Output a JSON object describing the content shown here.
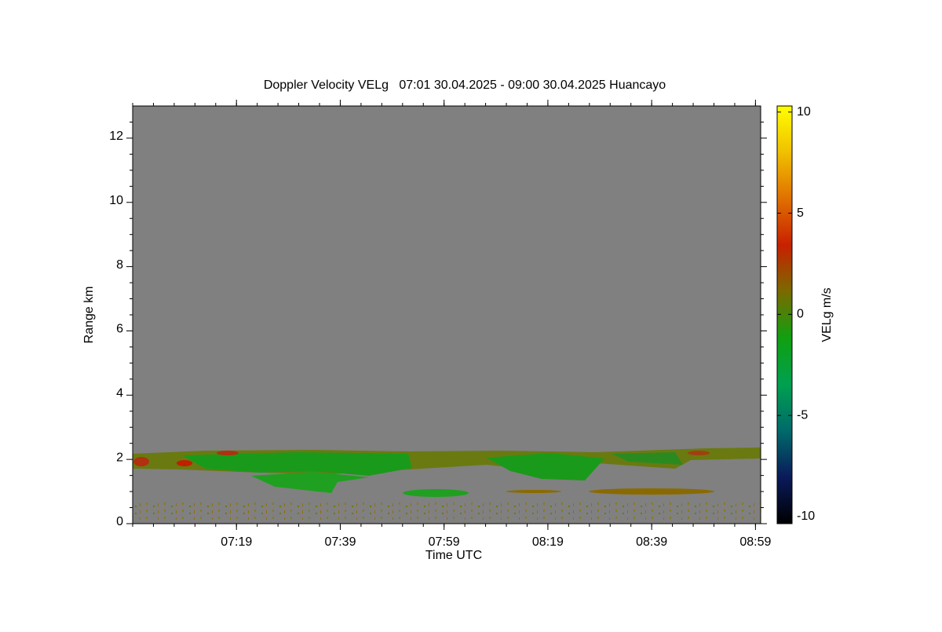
{
  "chart_data": {
    "type": "heatmap",
    "title": "Doppler Velocity VELg   07:01 30.04.2025 - 09:00 30.04.2025 Huancayo",
    "x_label": "Time UTC",
    "y_label": "Range km",
    "colorbar_label": "VELg m/s",
    "xlim": [
      419,
      540
    ],
    "xticks": [
      {
        "value": 439,
        "label": "07:19"
      },
      {
        "value": 459,
        "label": "07:39"
      },
      {
        "value": 479,
        "label": "07:59"
      },
      {
        "value": 499,
        "label": "08:19"
      },
      {
        "value": 519,
        "label": "08:39"
      },
      {
        "value": 539,
        "label": "08:59"
      }
    ],
    "ylim": [
      0,
      13
    ],
    "yticks": [
      0,
      2,
      4,
      6,
      8,
      10,
      12
    ],
    "clim": [
      -10.35,
      10.3
    ],
    "cticks": [
      10,
      5,
      0,
      -5,
      -10
    ],
    "colorscale": [
      "#000000",
      "#0a1a5a",
      "#006a6a",
      "#00a050",
      "#10a010",
      "#7a6a00",
      "#c82000",
      "#e07000",
      "#f0c000",
      "#ffff00"
    ],
    "background": "#808080"
  }
}
